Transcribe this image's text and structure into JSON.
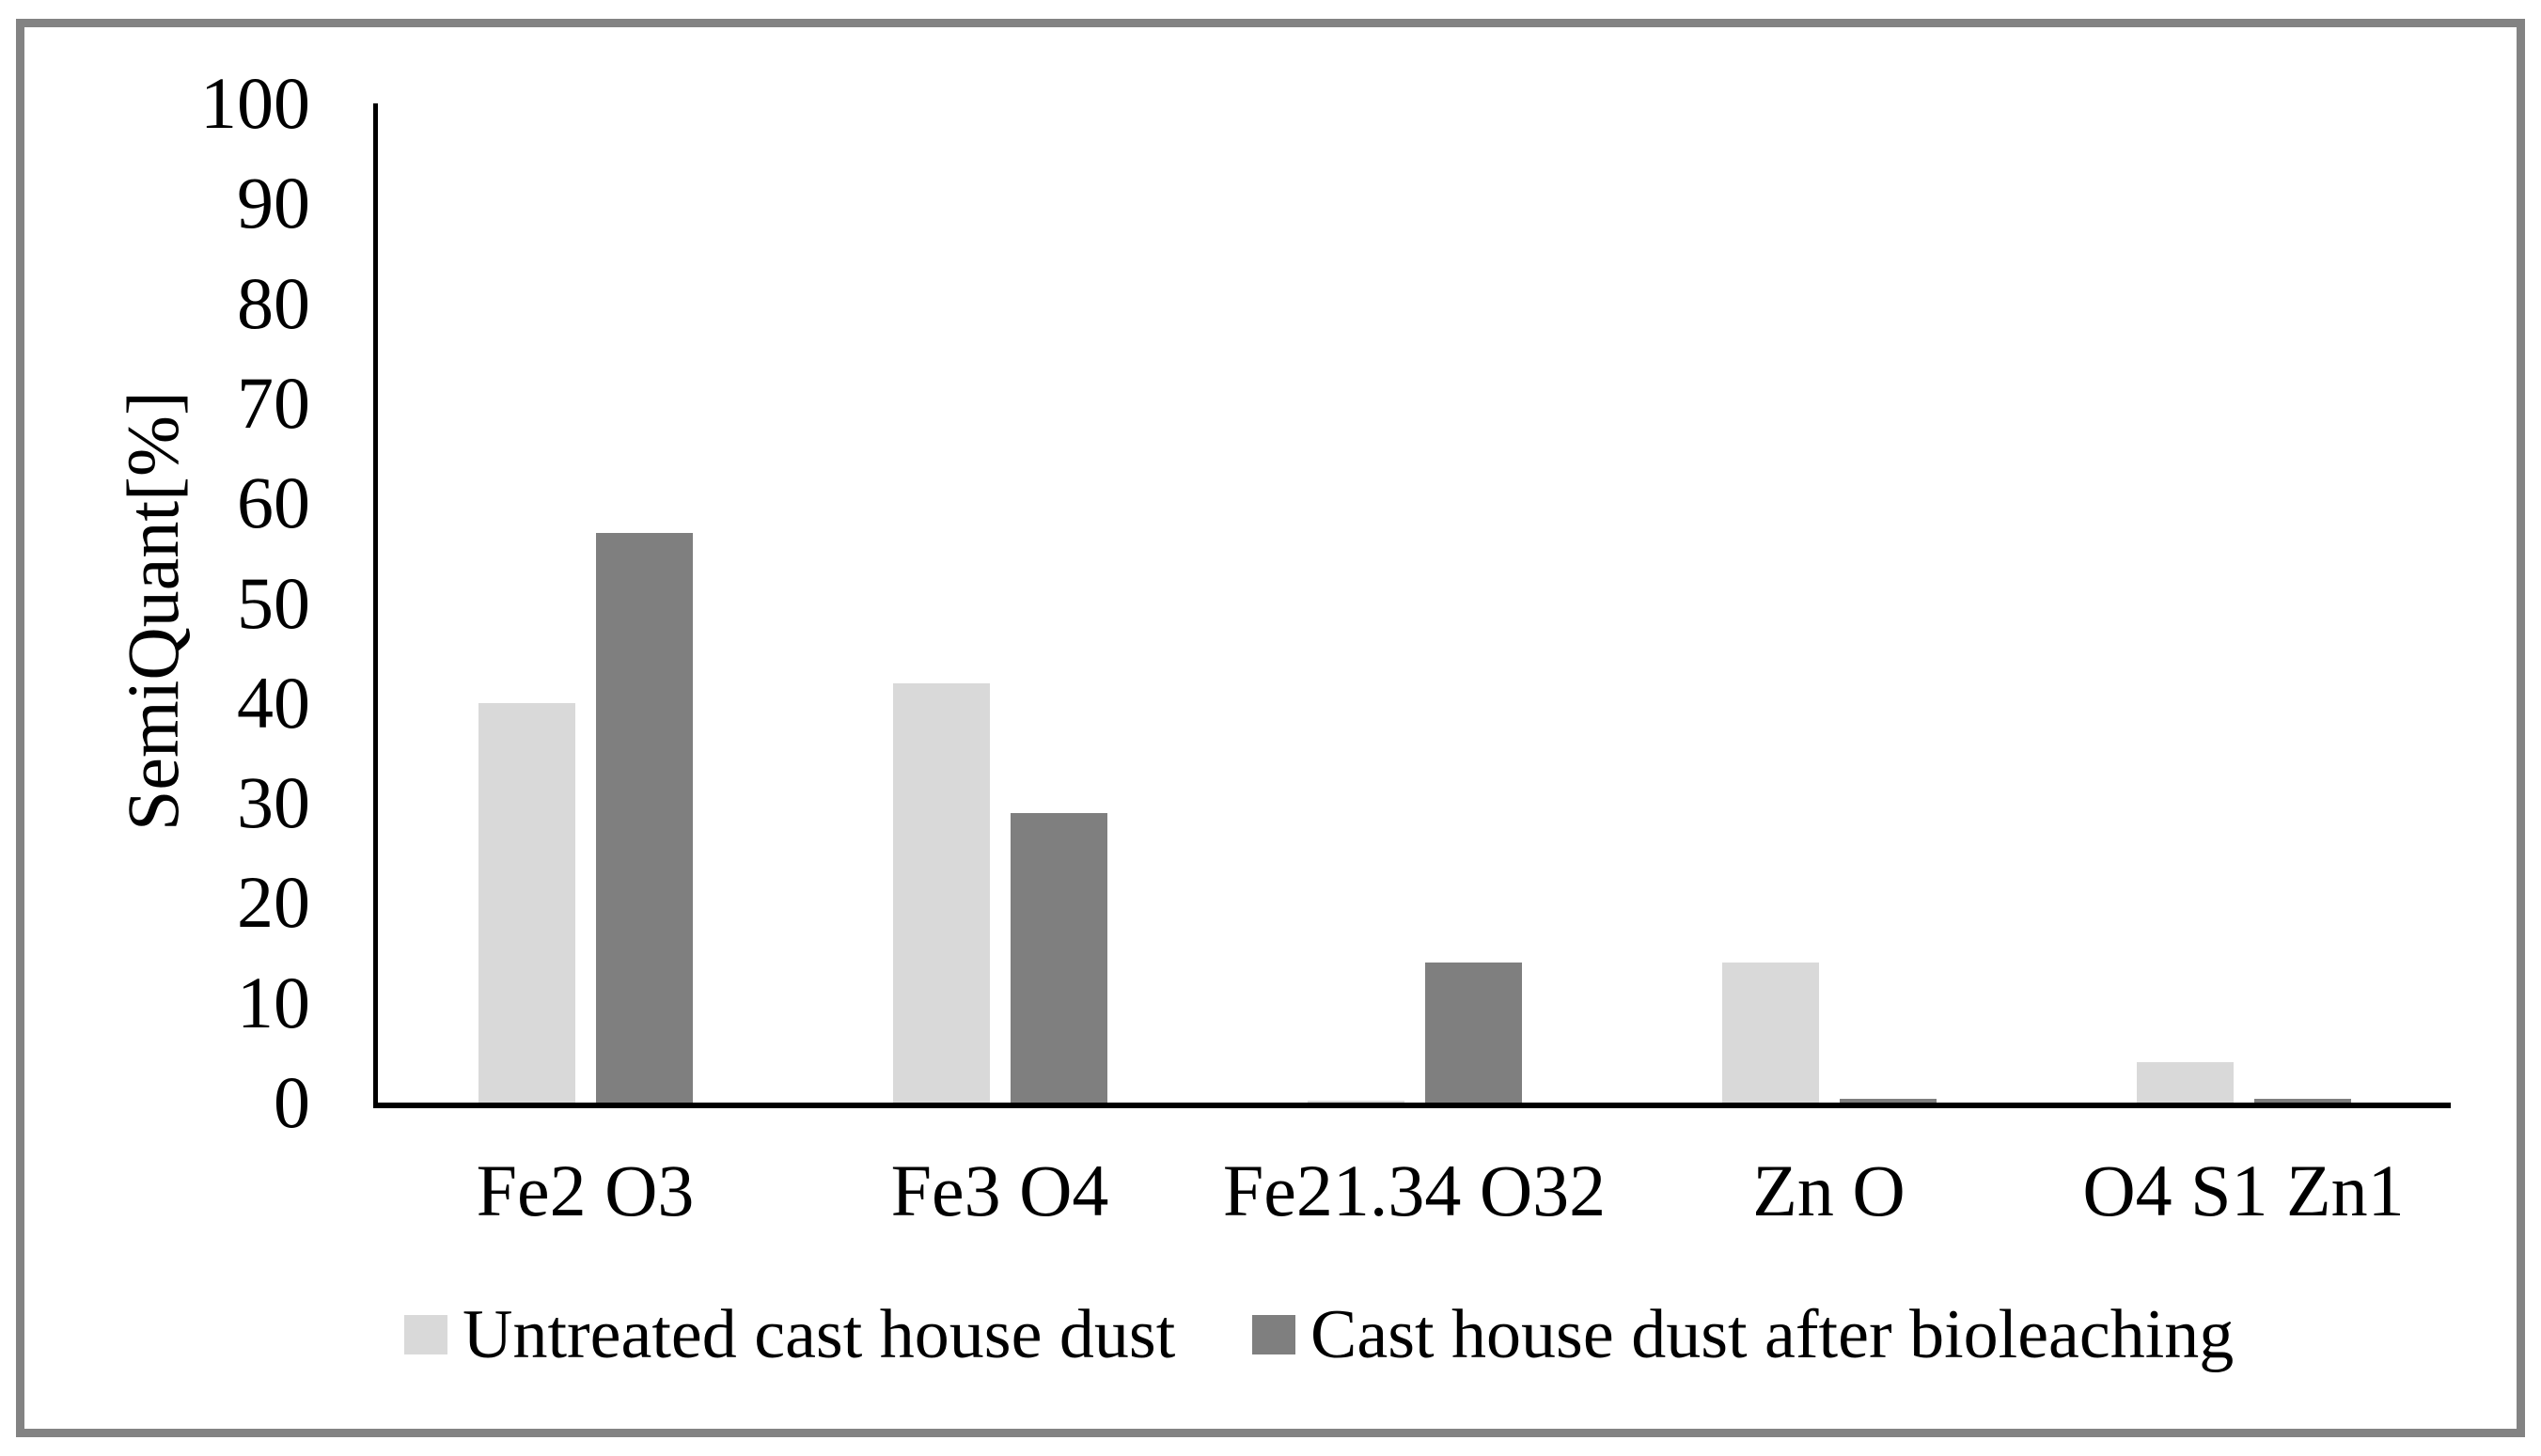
{
  "figure": {
    "frame_color": "#838383",
    "background": "#ffffff",
    "axis_color": "#000000"
  },
  "chart_data": {
    "type": "bar",
    "title": "",
    "xlabel": "",
    "ylabel": "SemiQuant[%]",
    "ylim": [
      0,
      100
    ],
    "yticks": [
      0,
      10,
      20,
      30,
      40,
      50,
      60,
      70,
      80,
      90,
      100
    ],
    "grid": false,
    "legend_position": "bottom",
    "categories": [
      "Fe2 O3",
      "Fe3 O4",
      "Fe21.34 O32",
      "Zn O",
      "O4 S1 Zn1"
    ],
    "series": [
      {
        "name": "Untreated cast house dust",
        "color": "#d9d9d9",
        "values": [
          40,
          42,
          0.2,
          14,
          4
        ]
      },
      {
        "name": "Cast house dust after bioleaching",
        "color": "#7f7f7f",
        "values": [
          57,
          29,
          14,
          0.4,
          0.4
        ]
      }
    ]
  }
}
